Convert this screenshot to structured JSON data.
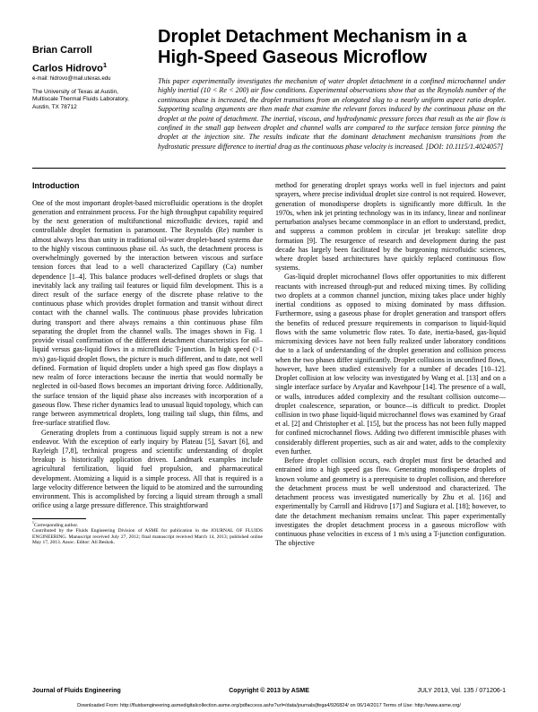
{
  "title": "Droplet Detachment Mechanism in a High-Speed Gaseous Microflow",
  "authors": {
    "first": "Brian Carroll",
    "second": "Carlos Hidrovo",
    "second_sup": "1",
    "email": "e-mail: hidrovo@mail.utexas.edu"
  },
  "affiliation": "The University of Texas at Austin,\nMultiscale Thermal Fluids Laboratory,\nAustin, TX 78712",
  "abstract": "This paper experimentally investigates the mechanism of water droplet detachment in a confined microchannel under highly inertial (10 < Re < 200) air flow conditions. Experimental observations show that as the Reynolds number of the continuous phase is increased, the droplet transitions from an elongated slug to a nearly uniform aspect ratio droplet. Supporting scaling arguments are then made that examine the relevant forces induced by the continuous phase on the droplet at the point of detachment. The inertial, viscous, and hydrodynamic pressure forces that result as the air flow is confined in the small gap between droplet and channel walls are compared to the surface tension force pinning the droplet at the injection site. The results indicate that the dominant detachment mechanism transitions from the hydrostatic pressure difference to inertial drag as the continuous phase velocity is increased. [DOI: 10.1115/1.4024057]",
  "section_heading": "Introduction",
  "body": {
    "p1": "One of the most important droplet-based microfluidic operations is the droplet generation and entrainment process. For the high throughput capability required by the next generation of multifunctional microfluidic devices, rapid and controllable droplet formation is paramount. The Reynolds (Re) number is almost always less than unity in traditional oil-water droplet-based systems due to the highly viscous continuous phase oil. As such, the detachment process is overwhelmingly governed by the interaction between viscous and surface tension forces that lead to a well characterized Capillary (Ca) number dependence [1–4]. This balance produces well-defined droplets or slugs that inevitably lack any trailing tail features or liquid film development. This is a direct result of the surface energy of the discrete phase relative to the continuous phase which provides droplet formation and transit without direct contact with the channel walls. The continuous phase provides lubrication during transport and there always remains a thin continuous phase film separating the droplet from the channel walls. The images shown in Fig. 1 provide visual confirmation of the different detachment characteristics for oil–liquid versus gas-liquid flows in a microfluidic T-junction. In high speed (>1 m/s) gas-liquid droplet flows, the picture is much different, and to date, not well defined. Formation of liquid droplets under a high speed gas flow displays a new realm of force interactions because the inertia that would normally be neglected in oil-based flows becomes an important driving force. Additionally, the surface tension of the liquid phase also increases with incorporation of a gaseous flow. These richer dynamics lead to unusual liquid topology, which can range between asymmetrical droplets, long trailing tail slugs, thin films, and free-surface stratified flow.",
    "p2": "Generating droplets from a continuous liquid supply stream is not a new endeavor. With the exception of early inquiry by Plateau [5], Savart [6], and Rayleigh [7,8], technical progress and scientific understanding of droplet breakup is historically application driven. Landmark examples include agricultural fertilization, liquid fuel propulsion, and pharmaceutical development. Atomizing a liquid is a simple process. All that is required is a large velocity difference between the liquid to be atomized and the surrounding environment. This is accomplished by forcing a liquid stream through a small orifice using a large pressure difference. This straightforward",
    "p3": "method for generating droplet sprays works well in fuel injectors and paint sprayers, where precise individual droplet size control is not required. However, generation of monodisperse droplets is significantly more difficult. In the 1970s, when ink jet printing technology was in its infancy, linear and nonlinear perturbation analyses became commonplace in an effort to understand, predict, and suppress a common problem in circular jet breakup: satellite drop formation [9]. The resurgence of research and development during the past decade has largely been facilitated by the burgeoning microfluidic sciences, where droplet based architectures have quickly replaced continuous flow systems.",
    "p4": "Gas-liquid droplet microchannel flows offer opportunities to mix different reactants with increased through-put and reduced mixing times. By colliding two droplets at a common channel junction, mixing takes place under highly inertial conditions as opposed to mixing dominated by mass diffusion. Furthermore, using a gaseous phase for droplet generation and transport offers the benefits of reduced pressure requirements in comparison to liquid-liquid flows with the same volumetric flow rates. To date, inertia-based, gas-liquid micromixing devices have not been fully realized under laboratory conditions due to a lack of understanding of the droplet generation and collision process when the two phases differ significantly. Droplet collisions in unconfined flows, however, have been studied extensively for a number of decades [10–12]. Droplet collision at low velocity was investigated by Wang et al. [13] and on a single interface surface by Aryafar and Kavehpour [14]. The presence of a wall, or walls, introduces added complexity and the resultant collision outcome—droplet coalescence, separation, or bounce—is difficult to predict. Droplet collision in two phase liquid-liquid microchannel flows was examined by Graaf et al. [2] and Christopher et al. [15], but the process has not been fully mapped for confined microchannel flows. Adding two different immiscible phases with considerably different properties, such as air and water, adds to the complexity even further.",
    "p5": "Before droplet collision occurs, each droplet must first be detached and entrained into a high speed gas flow. Generating monodisperse droplets of known volume and geometry is a prerequisite to droplet collision, and therefore the detachment process must be well understood and characterized. The detachment process was investigated numerically by Zhu et al. [16] and experimentally by Carroll and Hidrovo [17] and Sugiura et al. [18]; however, to date the detachment mechanism remains unclear. This paper experimentally investigates the droplet detachment process in a gaseous microflow with continuous phase velocities in excess of 1 m/s using a T-junction configuration. The objective"
  },
  "footnote": {
    "sup": "1",
    "label": "Corresponding author.",
    "text": "Contributed by the Fluids Engineering Division of ASME for publication in the JOURNAL OF FLUIDS ENGINEERING. Manuscript received July 27, 2012; final manuscript received March 14, 2013; published online May 17, 2013. Assoc. Editor: Ali Beskok."
  },
  "footer": {
    "left": "Journal of Fluids Engineering",
    "center": "Copyright © 2013 by ASME",
    "right": "JULY 2013, Vol. 135 / 071206-1"
  },
  "download": "Downloaded From: http://fluidsengineering.asmedigitalcollection.asme.org/pdfaccess.ashx?url=/data/journals/jfega4/926824/ on 06/14/2017 Terms of Use: http://www.asme.org/"
}
